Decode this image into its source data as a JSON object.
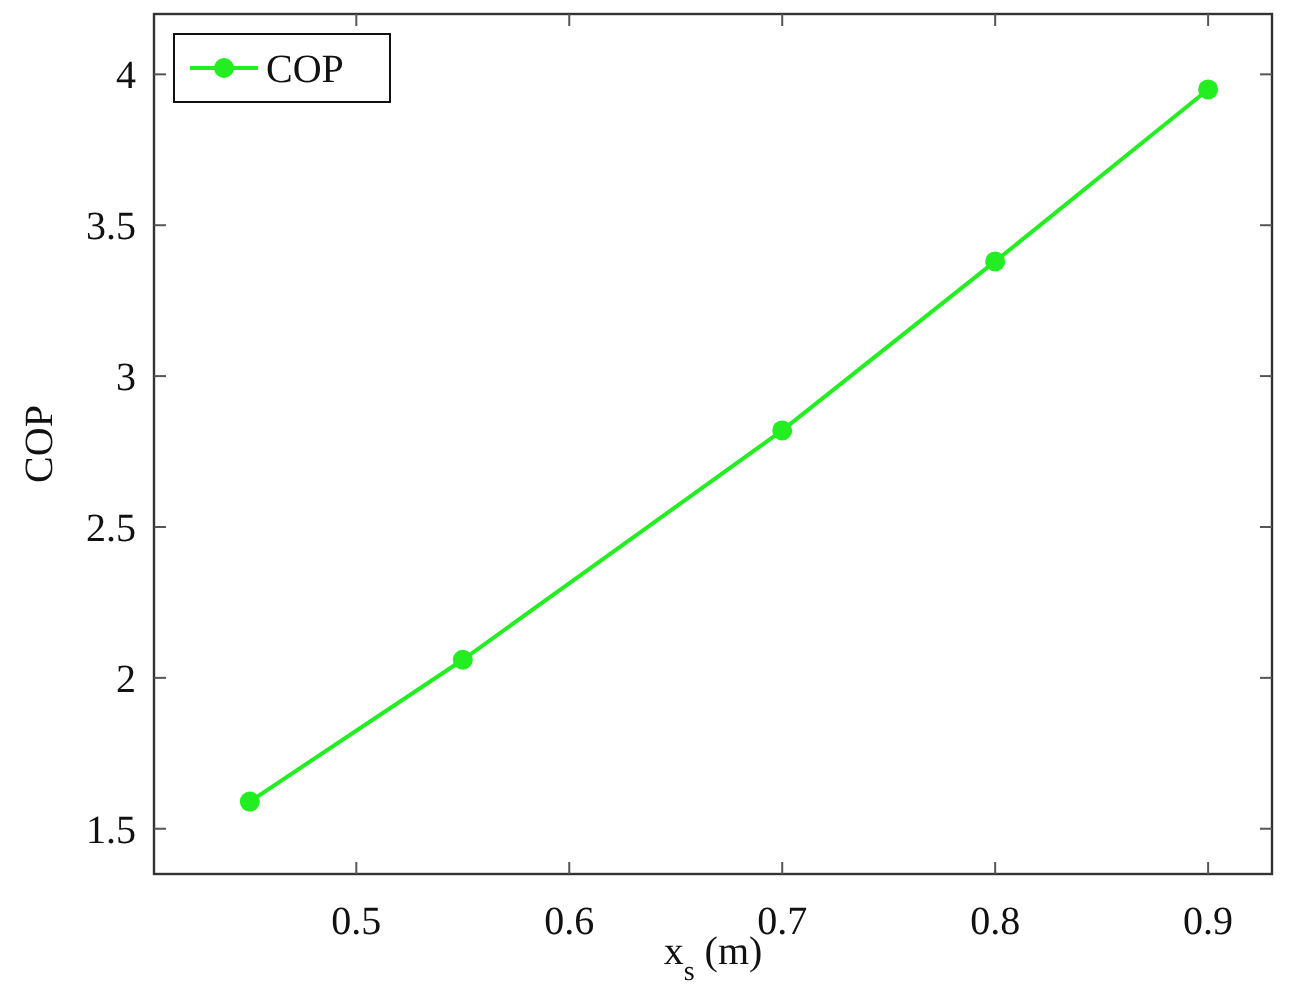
{
  "chart_data": {
    "type": "line",
    "xlabel": "x$_{s}$ (m)",
    "ylabel": "COP",
    "x": [
      0.45,
      0.55,
      0.7,
      0.8,
      0.9
    ],
    "series": [
      {
        "name": "COP",
        "color": "#22ee22",
        "values": [
          1.59,
          2.06,
          2.82,
          3.38,
          3.95
        ]
      }
    ],
    "xlim": [
      0.405,
      0.93
    ],
    "xticks": [
      0.5,
      0.6,
      0.7,
      0.8,
      0.9
    ],
    "ylim": [
      1.35,
      4.2
    ],
    "yticks": [
      1.5,
      2,
      2.5,
      3,
      3.5,
      4
    ],
    "grid": false,
    "legend": "top left",
    "marker": "circle",
    "line_style": "solid"
  }
}
